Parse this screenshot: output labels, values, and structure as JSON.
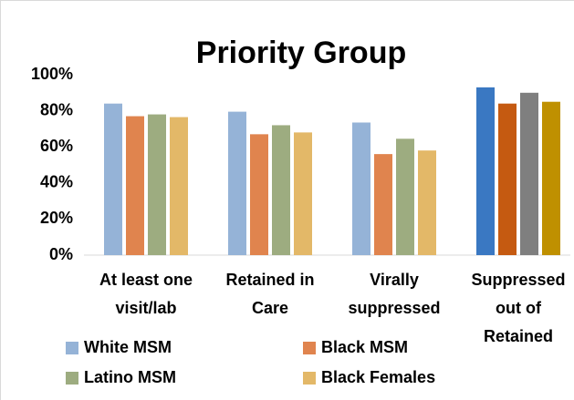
{
  "chart_data": {
    "type": "bar",
    "title": "Priority Group",
    "categories": [
      "At least one\nvisit/lab",
      "Retained in\nCare",
      "Virally\nsuppressed",
      "Suppressed\nout of\nRetained"
    ],
    "series": [
      {
        "name": "White MSM",
        "color": "#95b3d7",
        "colors": [
          "#95b3d7",
          "#95b3d7",
          "#95b3d7",
          "#3a78c2"
        ],
        "values": [
          84,
          79.5,
          73.5,
          93
        ]
      },
      {
        "name": "Black MSM",
        "color": "#e0844e",
        "colors": [
          "#e0844e",
          "#e0844e",
          "#e0844e",
          "#c55a11"
        ],
        "values": [
          77,
          67,
          56,
          84
        ]
      },
      {
        "name": "Latino MSM",
        "color": "#9dac80",
        "colors": [
          "#9dac80",
          "#9dac80",
          "#9dac80",
          "#7f7f7f"
        ],
        "values": [
          78,
          72,
          64.5,
          90
        ]
      },
      {
        "name": "Black Females",
        "color": "#e3b868",
        "colors": [
          "#e3b868",
          "#e3b868",
          "#e3b868",
          "#bf9000"
        ],
        "values": [
          76.5,
          68,
          58,
          85
        ]
      }
    ],
    "ylim": [
      0,
      100
    ],
    "yticks": [
      {
        "value": 0,
        "label": "0%"
      },
      {
        "value": 20,
        "label": "20%"
      },
      {
        "value": 40,
        "label": "40%"
      },
      {
        "value": 60,
        "label": "60%"
      },
      {
        "value": 80,
        "label": "80%"
      },
      {
        "value": 100,
        "label": "100%"
      }
    ],
    "grid": false
  }
}
